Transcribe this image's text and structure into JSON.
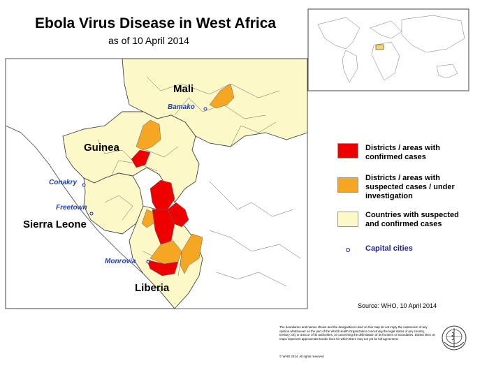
{
  "title": "Ebola Virus Disease in West Africa",
  "subtitle": "as of 10 April 2014",
  "countries": [
    "Mali",
    "Guinea",
    "Sierra Leone",
    "Liberia"
  ],
  "capitals": [
    "Bamako",
    "Conakry",
    "Freetown",
    "Monrovia"
  ],
  "legend": {
    "confirmed": {
      "label_line1": "Districts / areas with",
      "label_line2": "confirmed cases",
      "color": "#ee0000"
    },
    "suspected": {
      "label_line1": "Districts / areas with",
      "label_line2": "suspected cases / under",
      "label_line3": "investigation",
      "color": "#f5a623"
    },
    "countries": {
      "label_line1": "Countries with suspected",
      "label_line2": "and confirmed cases",
      "color": "#fdf8c8"
    },
    "capital": {
      "label": "Capital cities",
      "color": "#1f1f9f"
    }
  },
  "source": "Source: WHO, 10 April 2014",
  "disclaimer": "The boundaries and names shown and the designations used on this map do not imply the expression of any opinion whatsoever on the part of the World Health Organization concerning the legal status of any country, territory, city or area or of its authorities, or concerning the delimitation of its frontiers or boundaries. Dotted lines on maps represent approximate border lines for which there may not yet be full agreement.",
  "copyright": "© WHO 2014. All rights reserved",
  "colors": {
    "sea": "#ffffff",
    "land_other": "#ffffff",
    "affected_country": "#fdf8c8",
    "border": "#444444"
  }
}
